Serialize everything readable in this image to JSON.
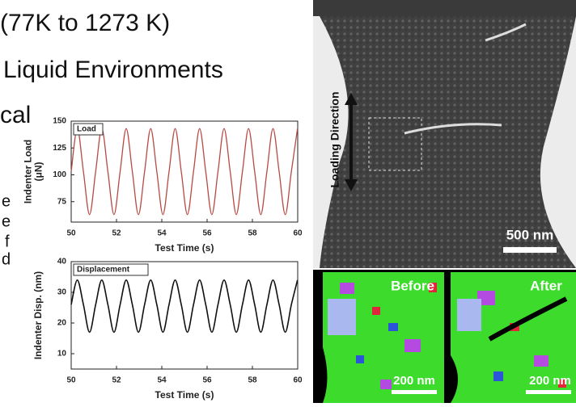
{
  "slide_text": {
    "line1": "(77K to 1273 K)",
    "line2": "Liquid Environments",
    "line3": "cal",
    "fragments": [
      "e",
      "e",
      "f",
      "d"
    ]
  },
  "chart_data": [
    {
      "type": "line",
      "xlabel": "Test Time (s)",
      "ylabel": [
        "Indenter Load",
        "(μN)"
      ],
      "x": [
        50,
        50.27,
        50.54,
        50.81,
        51.08,
        51.35,
        51.62,
        51.89,
        52.16,
        52.43,
        52.7,
        52.97,
        53.24,
        53.51,
        53.78,
        54.05,
        54.32,
        54.59,
        54.86,
        55.13,
        55.4,
        55.67,
        55.94,
        56.21,
        56.48,
        56.75,
        57.02,
        57.29,
        57.56,
        57.83,
        58.1,
        58.37,
        58.64,
        58.91,
        59.18,
        59.45,
        59.72,
        59.99
      ],
      "series": [
        {
          "name": "Load",
          "color": "#b84a45",
          "values": [
            103,
            143,
            103,
            63,
            103,
            143,
            103,
            63,
            103,
            143,
            103,
            63,
            103,
            143,
            103,
            63,
            103,
            143,
            103,
            63,
            103,
            143,
            103,
            63,
            103,
            143,
            103,
            63,
            103,
            143,
            103,
            63,
            103,
            143,
            103,
            63,
            103,
            143
          ]
        }
      ],
      "xlim": [
        50,
        60
      ],
      "xticks": [
        50,
        52,
        54,
        56,
        58,
        60
      ],
      "ylim": [
        56,
        150
      ],
      "yticks": [
        75,
        100,
        125,
        150
      ]
    },
    {
      "type": "line",
      "xlabel": "Test Time (s)",
      "ylabel": [
        "Indenter Disp. (nm)"
      ],
      "x": [
        50,
        50.27,
        50.54,
        50.81,
        51.08,
        51.35,
        51.62,
        51.89,
        52.16,
        52.43,
        52.7,
        52.97,
        53.24,
        53.51,
        53.78,
        54.05,
        54.32,
        54.59,
        54.86,
        55.13,
        55.4,
        55.67,
        55.94,
        56.21,
        56.48,
        56.75,
        57.02,
        57.29,
        57.56,
        57.83,
        58.1,
        58.37,
        58.64,
        58.91,
        59.18,
        59.45,
        59.72,
        59.99
      ],
      "series": [
        {
          "name": "Displacement",
          "color": "#111111",
          "values": [
            26,
            34,
            26,
            17,
            26,
            34,
            26,
            17,
            26,
            34,
            26,
            17,
            26,
            34,
            26,
            17,
            26,
            34,
            26,
            17,
            26,
            34,
            26,
            17,
            26,
            34,
            26,
            17,
            26,
            34,
            26,
            17,
            26,
            34,
            26,
            17,
            26,
            34
          ]
        }
      ],
      "xlim": [
        50,
        60
      ],
      "xticks": [
        50,
        52,
        54,
        56,
        58,
        60
      ],
      "ylim": [
        5,
        40
      ],
      "yticks": [
        10,
        20,
        30,
        40
      ]
    }
  ],
  "images": {
    "top": {
      "label": "Loading Direction",
      "scale_bar": "500 nm"
    },
    "bottom": [
      {
        "label": "Before",
        "scale_bar": "200 nm"
      },
      {
        "label": "After",
        "scale_bar": "200 nm"
      }
    ]
  }
}
